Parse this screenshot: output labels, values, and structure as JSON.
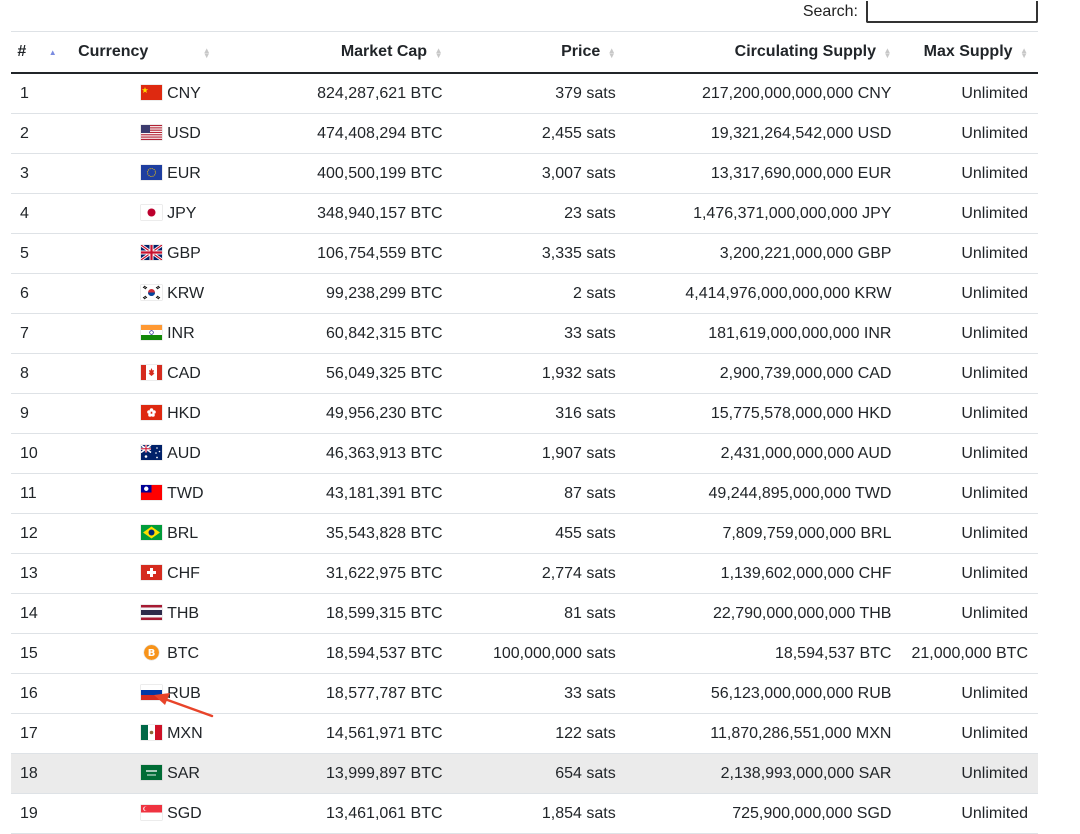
{
  "search": {
    "label": "Search:",
    "value": ""
  },
  "columns": [
    "#",
    "Currency",
    "Market Cap",
    "Price",
    "Circulating Supply",
    "Max Supply"
  ],
  "rows": [
    {
      "rank": "1",
      "code": "CNY",
      "flag": "cn",
      "market_cap": "824,287,621 BTC",
      "price": "379 sats",
      "supply": "217,200,000,000,000 CNY",
      "max": "Unlimited"
    },
    {
      "rank": "2",
      "code": "USD",
      "flag": "us",
      "market_cap": "474,408,294 BTC",
      "price": "2,455 sats",
      "supply": "19,321,264,542,000 USD",
      "max": "Unlimited"
    },
    {
      "rank": "3",
      "code": "EUR",
      "flag": "eu",
      "market_cap": "400,500,199 BTC",
      "price": "3,007 sats",
      "supply": "13,317,690,000,000 EUR",
      "max": "Unlimited"
    },
    {
      "rank": "4",
      "code": "JPY",
      "flag": "jp",
      "market_cap": "348,940,157 BTC",
      "price": "23 sats",
      "supply": "1,476,371,000,000,000 JPY",
      "max": "Unlimited"
    },
    {
      "rank": "5",
      "code": "GBP",
      "flag": "gb",
      "market_cap": "106,754,559 BTC",
      "price": "3,335 sats",
      "supply": "3,200,221,000,000 GBP",
      "max": "Unlimited"
    },
    {
      "rank": "6",
      "code": "KRW",
      "flag": "kr",
      "market_cap": "99,238,299 BTC",
      "price": "2 sats",
      "supply": "4,414,976,000,000,000 KRW",
      "max": "Unlimited"
    },
    {
      "rank": "7",
      "code": "INR",
      "flag": "in",
      "market_cap": "60,842,315 BTC",
      "price": "33 sats",
      "supply": "181,619,000,000,000 INR",
      "max": "Unlimited"
    },
    {
      "rank": "8",
      "code": "CAD",
      "flag": "ca",
      "market_cap": "56,049,325 BTC",
      "price": "1,932 sats",
      "supply": "2,900,739,000,000 CAD",
      "max": "Unlimited"
    },
    {
      "rank": "9",
      "code": "HKD",
      "flag": "hk",
      "market_cap": "49,956,230 BTC",
      "price": "316 sats",
      "supply": "15,775,578,000,000 HKD",
      "max": "Unlimited"
    },
    {
      "rank": "10",
      "code": "AUD",
      "flag": "au",
      "market_cap": "46,363,913 BTC",
      "price": "1,907 sats",
      "supply": "2,431,000,000,000 AUD",
      "max": "Unlimited"
    },
    {
      "rank": "11",
      "code": "TWD",
      "flag": "tw",
      "market_cap": "43,181,391 BTC",
      "price": "87 sats",
      "supply": "49,244,895,000,000 TWD",
      "max": "Unlimited"
    },
    {
      "rank": "12",
      "code": "BRL",
      "flag": "br",
      "market_cap": "35,543,828 BTC",
      "price": "455 sats",
      "supply": "7,809,759,000,000 BRL",
      "max": "Unlimited"
    },
    {
      "rank": "13",
      "code": "CHF",
      "flag": "ch",
      "market_cap": "31,622,975 BTC",
      "price": "2,774 sats",
      "supply": "1,139,602,000,000 CHF",
      "max": "Unlimited"
    },
    {
      "rank": "14",
      "code": "THB",
      "flag": "th",
      "market_cap": "18,599,315 BTC",
      "price": "81 sats",
      "supply": "22,790,000,000,000 THB",
      "max": "Unlimited"
    },
    {
      "rank": "15",
      "code": "BTC",
      "flag": "btc",
      "market_cap": "18,594,537 BTC",
      "price": "100,000,000 sats",
      "supply": "18,594,537 BTC",
      "max": "21,000,000 BTC"
    },
    {
      "rank": "16",
      "code": "RUB",
      "flag": "ru",
      "market_cap": "18,577,787 BTC",
      "price": "33 sats",
      "supply": "56,123,000,000,000 RUB",
      "max": "Unlimited"
    },
    {
      "rank": "17",
      "code": "MXN",
      "flag": "mx",
      "market_cap": "14,561,971 BTC",
      "price": "122 sats",
      "supply": "11,870,286,551,000 MXN",
      "max": "Unlimited"
    },
    {
      "rank": "18",
      "code": "SAR",
      "flag": "sa",
      "market_cap": "13,999,897 BTC",
      "price": "654 sats",
      "supply": "2,138,993,000,000 SAR",
      "max": "Unlimited"
    },
    {
      "rank": "19",
      "code": "SGD",
      "flag": "sg",
      "market_cap": "13,461,061 BTC",
      "price": "1,854 sats",
      "supply": "725,900,000,000 SGD",
      "max": "Unlimited"
    }
  ],
  "colors": {
    "annotation_arrow": "#e8442a",
    "row_highlight": "#ebebeb",
    "sort_active": "#7a8be0"
  }
}
